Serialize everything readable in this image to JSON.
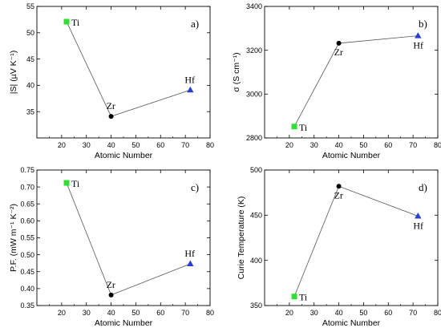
{
  "chart_data": [
    {
      "type": "line",
      "panel_label": "a)",
      "xlabel": "Atomic Number",
      "ylabel": "|S| (µV K⁻¹)",
      "xlim": [
        10,
        80
      ],
      "ylim": [
        30,
        55
      ],
      "xticks": [
        20,
        30,
        40,
        50,
        60,
        70,
        80
      ],
      "yticks": [
        35,
        40,
        45,
        50,
        55
      ],
      "grid": false,
      "points": [
        {
          "x": 22,
          "y": 52.1,
          "label": "Ti",
          "marker": "square",
          "color": "#33dd33"
        },
        {
          "x": 40,
          "y": 34.1,
          "label": "Zr",
          "marker": "circle",
          "color": "#000000"
        },
        {
          "x": 72,
          "y": 39.1,
          "label": "Hf",
          "marker": "triangle",
          "color": "#2b3dd1"
        }
      ]
    },
    {
      "type": "line",
      "panel_label": "b)",
      "xlabel": "Atomic Number",
      "ylabel": "σ (S cm⁻¹)",
      "xlim": [
        10,
        80
      ],
      "ylim": [
        2800,
        3400
      ],
      "xticks": [
        20,
        30,
        40,
        50,
        60,
        70,
        80
      ],
      "yticks": [
        2800,
        3000,
        3200,
        3400
      ],
      "grid": false,
      "points": [
        {
          "x": 22,
          "y": 2852,
          "label": "Ti",
          "marker": "square",
          "color": "#33dd33"
        },
        {
          "x": 40,
          "y": 3232,
          "label": "Zr",
          "marker": "circle",
          "color": "#000000"
        },
        {
          "x": 72,
          "y": 3266,
          "label": "Hf",
          "marker": "triangle",
          "color": "#2b3dd1"
        }
      ]
    },
    {
      "type": "line",
      "panel_label": "c)",
      "xlabel": "Atomic Number",
      "ylabel": "P.F. (mW m⁻¹ K⁻²)",
      "xlim": [
        10,
        80
      ],
      "ylim": [
        0.35,
        0.75
      ],
      "xticks": [
        20,
        30,
        40,
        50,
        60,
        70,
        80
      ],
      "yticks": [
        0.35,
        0.4,
        0.45,
        0.5,
        0.55,
        0.6,
        0.65,
        0.7,
        0.75
      ],
      "grid": false,
      "points": [
        {
          "x": 22,
          "y": 0.712,
          "label": "Ti",
          "marker": "square",
          "color": "#33dd33"
        },
        {
          "x": 40,
          "y": 0.381,
          "label": "Zr",
          "marker": "circle",
          "color": "#000000"
        },
        {
          "x": 72,
          "y": 0.473,
          "label": "Hf",
          "marker": "triangle",
          "color": "#2b3dd1"
        }
      ]
    },
    {
      "type": "line",
      "panel_label": "d)",
      "xlabel": "Atomic Number",
      "ylabel": "Curie Temperature (K)",
      "xlim": [
        10,
        80
      ],
      "ylim": [
        350,
        500
      ],
      "xticks": [
        20,
        30,
        40,
        50,
        60,
        70,
        80
      ],
      "yticks": [
        350,
        400,
        450,
        500
      ],
      "grid": false,
      "points": [
        {
          "x": 22,
          "y": 360,
          "label": "Ti",
          "marker": "square",
          "color": "#33dd33"
        },
        {
          "x": 40,
          "y": 482,
          "label": "Zr",
          "marker": "circle",
          "color": "#000000"
        },
        {
          "x": 72,
          "y": 449,
          "label": "Hf",
          "marker": "triangle",
          "color": "#2b3dd1"
        }
      ]
    }
  ]
}
